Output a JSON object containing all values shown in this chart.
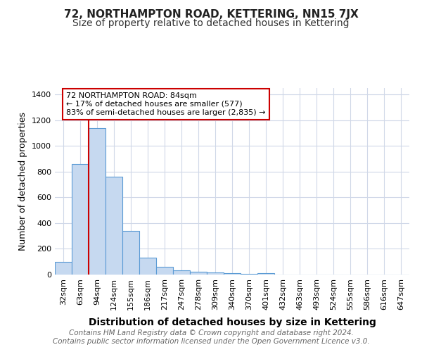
{
  "title": "72, NORTHAMPTON ROAD, KETTERING, NN15 7JX",
  "subtitle": "Size of property relative to detached houses in Kettering",
  "xlabel": "Distribution of detached houses by size in Kettering",
  "ylabel": "Number of detached properties",
  "categories": [
    "32sqm",
    "63sqm",
    "94sqm",
    "124sqm",
    "155sqm",
    "186sqm",
    "217sqm",
    "247sqm",
    "278sqm",
    "309sqm",
    "340sqm",
    "370sqm",
    "401sqm",
    "432sqm",
    "463sqm",
    "493sqm",
    "524sqm",
    "555sqm",
    "586sqm",
    "616sqm",
    "647sqm"
  ],
  "values": [
    100,
    860,
    1140,
    760,
    340,
    130,
    60,
    35,
    20,
    15,
    10,
    5,
    10,
    0,
    0,
    0,
    0,
    0,
    0,
    0,
    0
  ],
  "bar_color": "#c6d9f0",
  "bar_edge_color": "#5b9bd5",
  "highlight_bar_index": 1,
  "highlight_line_color": "#cc0000",
  "ylim": [
    0,
    1450
  ],
  "yticks": [
    0,
    200,
    400,
    600,
    800,
    1000,
    1200,
    1400
  ],
  "annotation_line1": "72 NORTHAMPTON ROAD: 84sqm",
  "annotation_line2": "← 17% of detached houses are smaller (577)",
  "annotation_line3": "83% of semi-detached houses are larger (2,835) →",
  "annotation_box_color": "#ffffff",
  "annotation_box_edge_color": "#cc0000",
  "footer_text": "Contains HM Land Registry data © Crown copyright and database right 2024.\nContains public sector information licensed under the Open Government Licence v3.0.",
  "background_color": "#ffffff",
  "grid_color": "#d0d8e8",
  "title_fontsize": 11,
  "subtitle_fontsize": 10,
  "xlabel_fontsize": 10,
  "ylabel_fontsize": 9,
  "tick_fontsize": 8,
  "footer_fontsize": 7.5,
  "annotation_fontsize": 8
}
